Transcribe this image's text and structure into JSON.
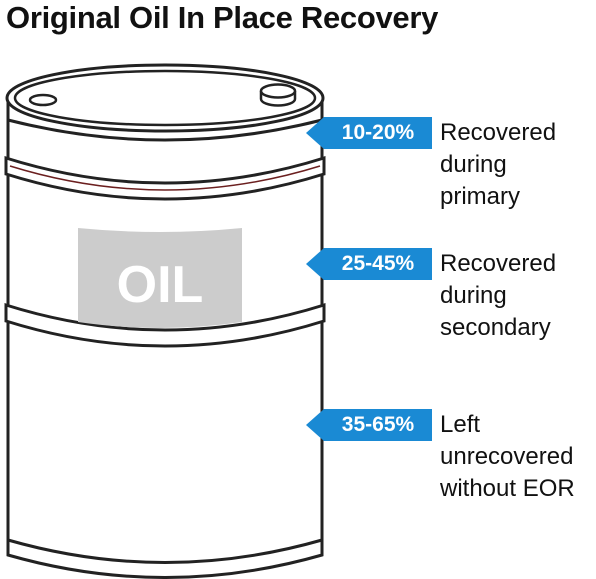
{
  "title": "Original Oil In Place Recovery",
  "barrel": {
    "label": "OIL",
    "colors": {
      "outline": "#222222",
      "body": "#ffffff",
      "label_panel": "#cccccc",
      "label_text": "#ffffff",
      "rim_accent": "#6b1f1f"
    }
  },
  "accent_color": "#1a8ad4",
  "stages": [
    {
      "percent": "10-20%",
      "lines": [
        "Recovered",
        "during",
        "primary"
      ]
    },
    {
      "percent": "25-45%",
      "lines": [
        "Recovered",
        "during",
        "secondary"
      ]
    },
    {
      "percent": "35-65%",
      "lines": [
        "Left",
        "unrecovered",
        "without EOR"
      ]
    }
  ]
}
